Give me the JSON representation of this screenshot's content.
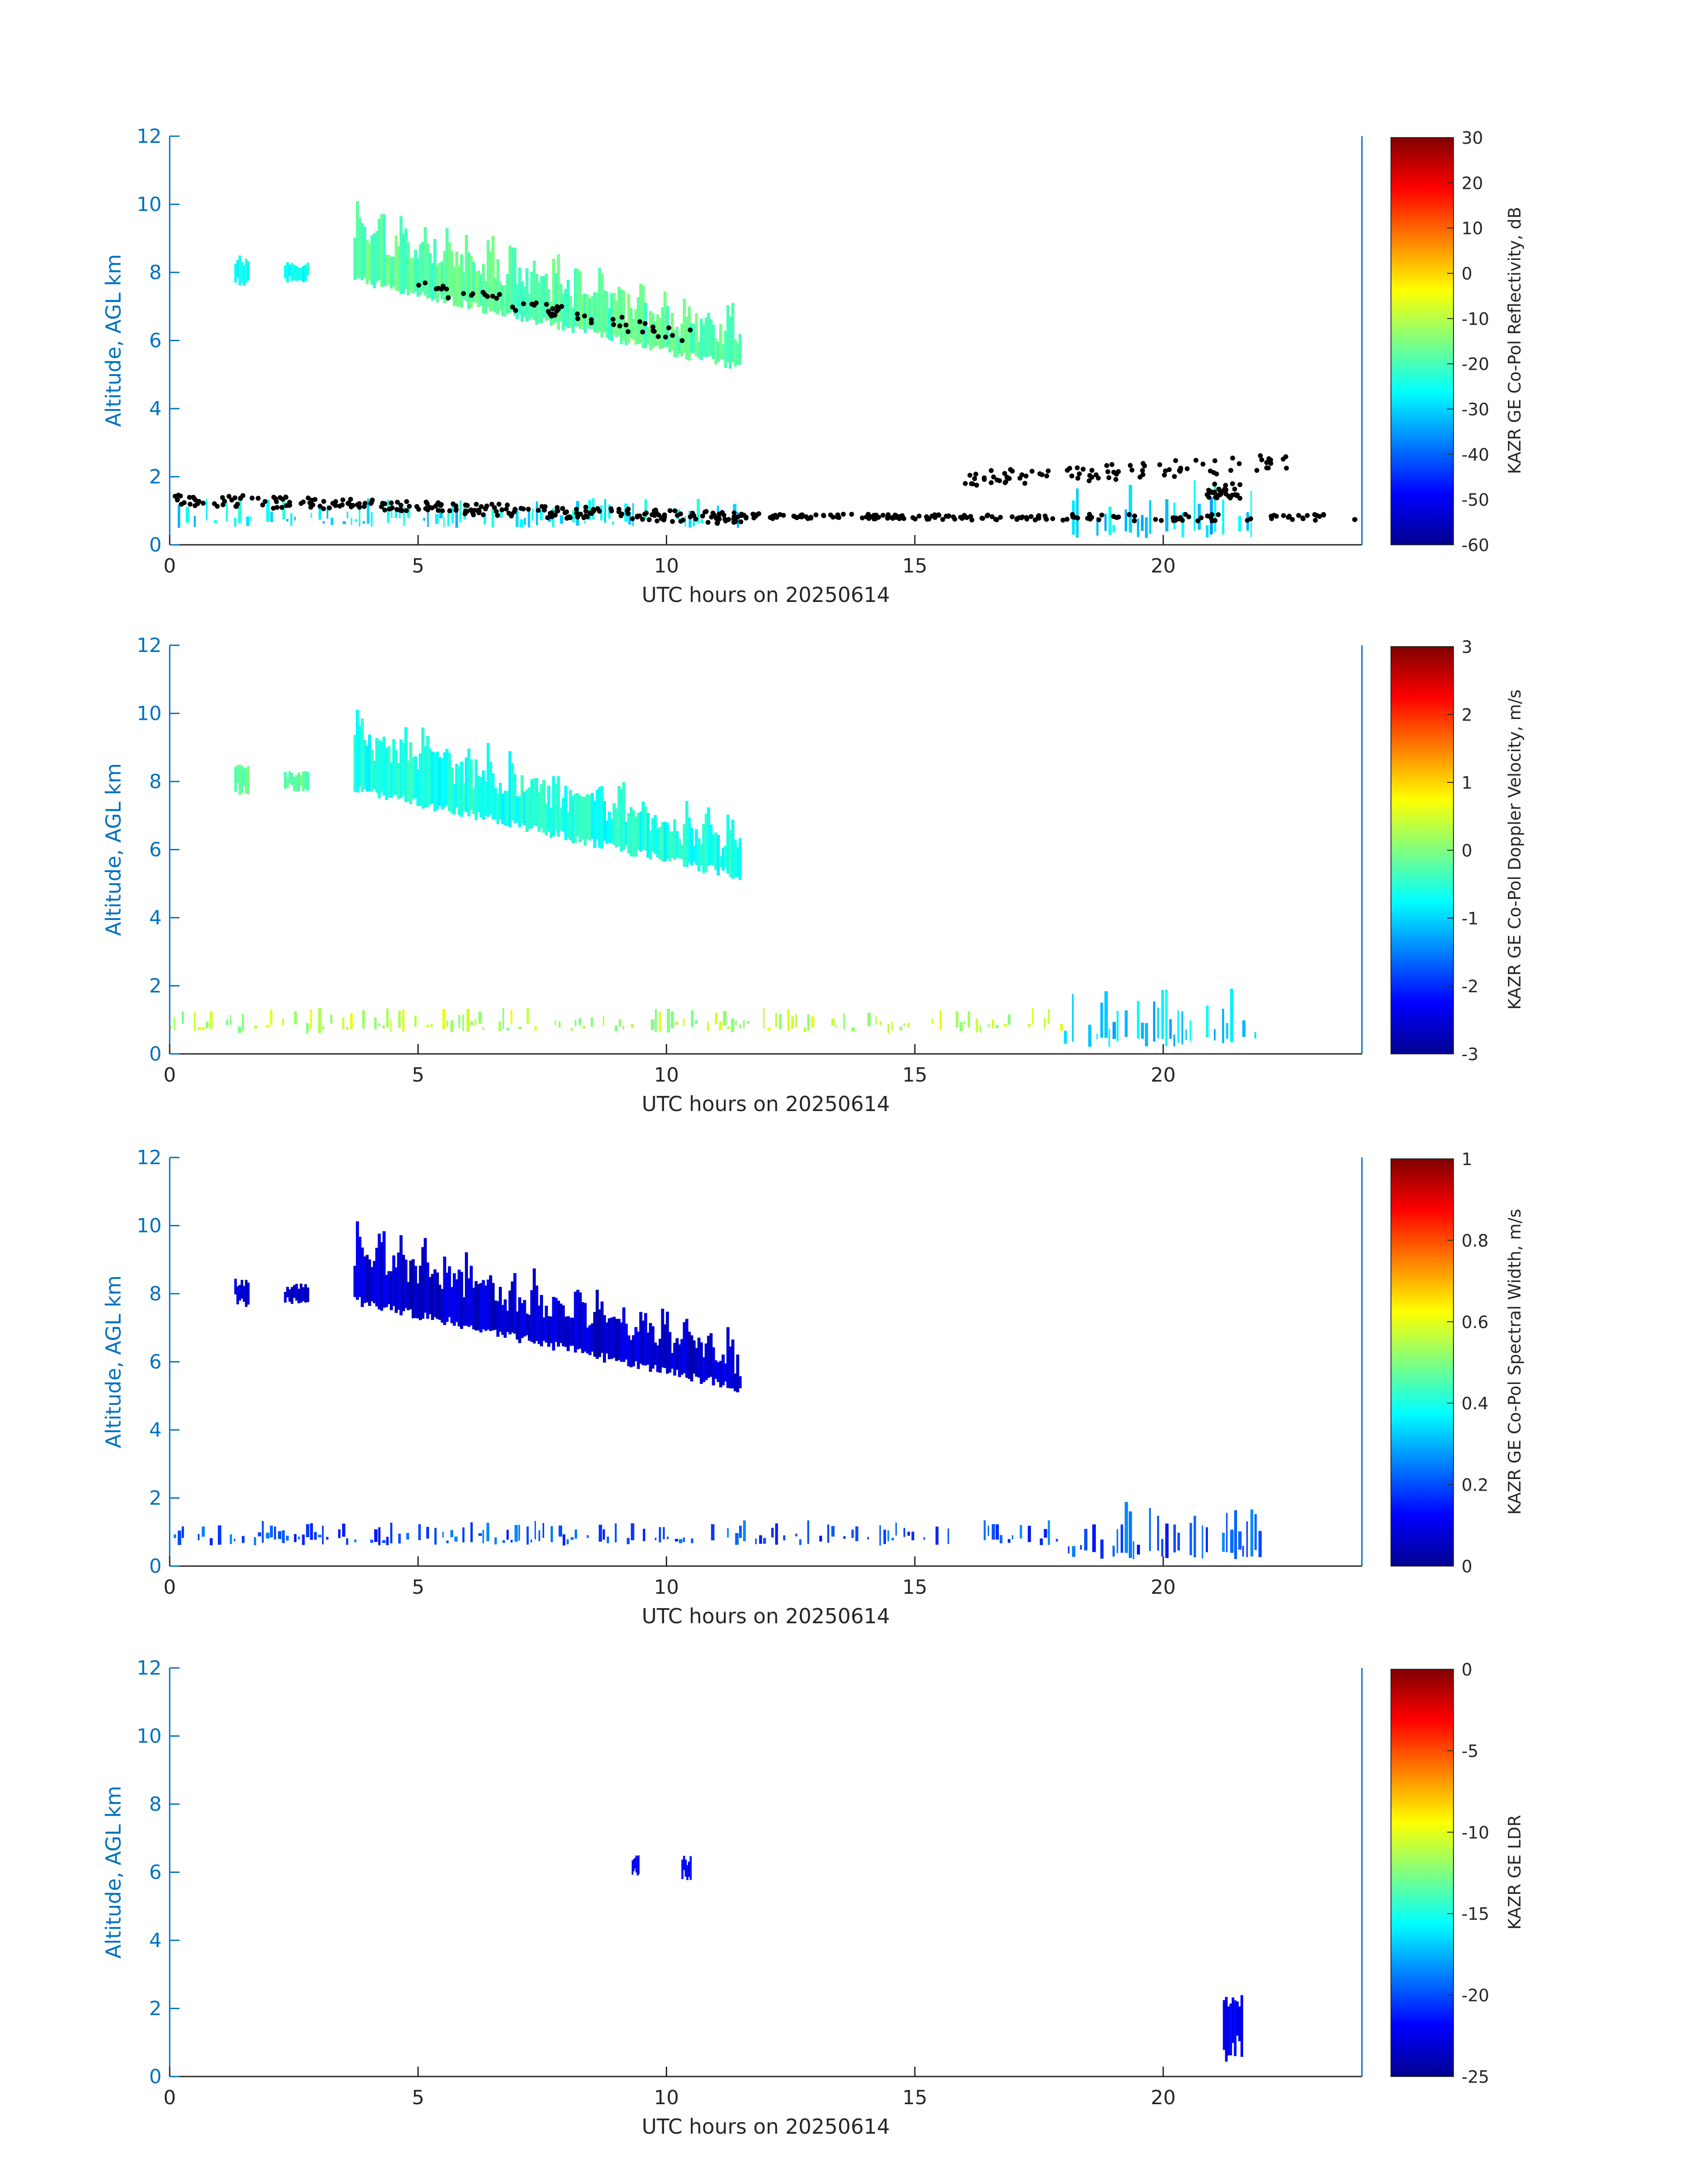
{
  "chart_data": [
    {
      "type": "heatmap",
      "xlabel": "UTC hours on 20250614",
      "ylabel": "Altitude, AGL km",
      "xlim": [
        0,
        24
      ],
      "ylim": [
        0,
        12
      ],
      "xticks": [
        0,
        5,
        10,
        15,
        20
      ],
      "yticks": [
        0,
        2,
        4,
        6,
        8,
        10,
        12
      ],
      "colorbar": {
        "label": "KAZR GE Co-Pol Reflectivity, dB",
        "range": [
          -60,
          30
        ],
        "ticks": [
          -60,
          -50,
          -40,
          -30,
          -20,
          -10,
          0,
          10,
          20,
          30
        ],
        "colormap": "jet"
      },
      "overlay": "black dots (cloud base markers)",
      "features": [
        {
          "x": [
            1.3,
            1.6
          ],
          "y": [
            7.6,
            8.5
          ],
          "value": -25
        },
        {
          "x": [
            2.3,
            2.8
          ],
          "y": [
            7.7,
            8.3
          ],
          "value": -25
        },
        {
          "x": [
            3.7,
            11.5
          ],
          "y": [
            5.2,
            9.4
          ],
          "value": -18,
          "shape": "slanted_layer"
        },
        {
          "x": [
            0,
            11.5
          ],
          "y": [
            0.5,
            1.7
          ],
          "value": -28,
          "shape": "low_layer"
        },
        {
          "x": [
            18,
            22
          ],
          "y": [
            0.2,
            2.5
          ],
          "value": -30,
          "shape": "low_layer"
        }
      ]
    },
    {
      "type": "heatmap",
      "xlabel": "UTC hours on 20250614",
      "ylabel": "Altitude, AGL km",
      "xlim": [
        0,
        24
      ],
      "ylim": [
        0,
        12
      ],
      "xticks": [
        0,
        5,
        10,
        15,
        20
      ],
      "yticks": [
        0,
        2,
        4,
        6,
        8,
        10,
        12
      ],
      "colorbar": {
        "label": "KAZR GE Co-Pol Doppler Velocity, m/s",
        "range": [
          -3,
          3
        ],
        "ticks": [
          -3,
          -2,
          -1,
          0,
          1,
          2,
          3
        ],
        "colormap": "jet"
      },
      "features": [
        {
          "x": [
            1.3,
            1.6
          ],
          "y": [
            7.6,
            8.5
          ],
          "value": -0.2
        },
        {
          "x": [
            2.3,
            2.8
          ],
          "y": [
            7.7,
            8.3
          ],
          "value": -0.2
        },
        {
          "x": [
            3.7,
            11.5
          ],
          "y": [
            5.2,
            9.4
          ],
          "value": -0.6,
          "shape": "slanted_layer"
        },
        {
          "x": [
            0,
            18
          ],
          "y": [
            0.6,
            1.6
          ],
          "value": 0.3,
          "shape": "low_layer"
        },
        {
          "x": [
            18,
            22
          ],
          "y": [
            0.2,
            2.5
          ],
          "value": -1.0,
          "shape": "low_layer"
        }
      ]
    },
    {
      "type": "heatmap",
      "xlabel": "UTC hours on 20250614",
      "ylabel": "Altitude, AGL km",
      "xlim": [
        0,
        24
      ],
      "ylim": [
        0,
        12
      ],
      "xticks": [
        0,
        5,
        10,
        15,
        20
      ],
      "yticks": [
        0,
        2,
        4,
        6,
        8,
        10,
        12
      ],
      "colorbar": {
        "label": "KAZR GE Co-Pol Spectral Width, m/s",
        "range": [
          0,
          1
        ],
        "ticks": [
          0,
          0.2,
          0.4,
          0.6,
          0.8,
          1
        ],
        "colormap": "jet"
      },
      "features": [
        {
          "x": [
            1.3,
            1.6
          ],
          "y": [
            7.6,
            8.5
          ],
          "value": 0.08
        },
        {
          "x": [
            2.3,
            2.8
          ],
          "y": [
            7.7,
            8.3
          ],
          "value": 0.08
        },
        {
          "x": [
            3.7,
            11.5
          ],
          "y": [
            5.2,
            9.4
          ],
          "value": 0.08,
          "shape": "slanted_layer"
        },
        {
          "x": [
            0,
            18
          ],
          "y": [
            0.6,
            1.6
          ],
          "value": 0.2,
          "shape": "low_layer"
        },
        {
          "x": [
            18,
            22
          ],
          "y": [
            0.2,
            2.5
          ],
          "value": 0.2,
          "shape": "low_layer"
        }
      ]
    },
    {
      "type": "heatmap",
      "xlabel": "UTC hours on 20250614",
      "ylabel": "Altitude, AGL km",
      "xlim": [
        0,
        24
      ],
      "ylim": [
        0,
        12
      ],
      "xticks": [
        0,
        5,
        10,
        15,
        20
      ],
      "yticks": [
        0,
        2,
        4,
        6,
        8,
        10,
        12
      ],
      "colorbar": {
        "label": "KAZR GE LDR",
        "range": [
          -25,
          0
        ],
        "ticks": [
          -25,
          -20,
          -15,
          -10,
          -5,
          0
        ],
        "colormap": "jet"
      },
      "features": [
        {
          "x": [
            9.3,
            9.45
          ],
          "y": [
            5.9,
            6.5
          ],
          "value": -22
        },
        {
          "x": [
            10.3,
            10.5
          ],
          "y": [
            5.7,
            6.5
          ],
          "value": -22
        },
        {
          "x": [
            21.2,
            21.6
          ],
          "y": [
            0.4,
            2.4
          ],
          "value": -22
        }
      ]
    }
  ]
}
